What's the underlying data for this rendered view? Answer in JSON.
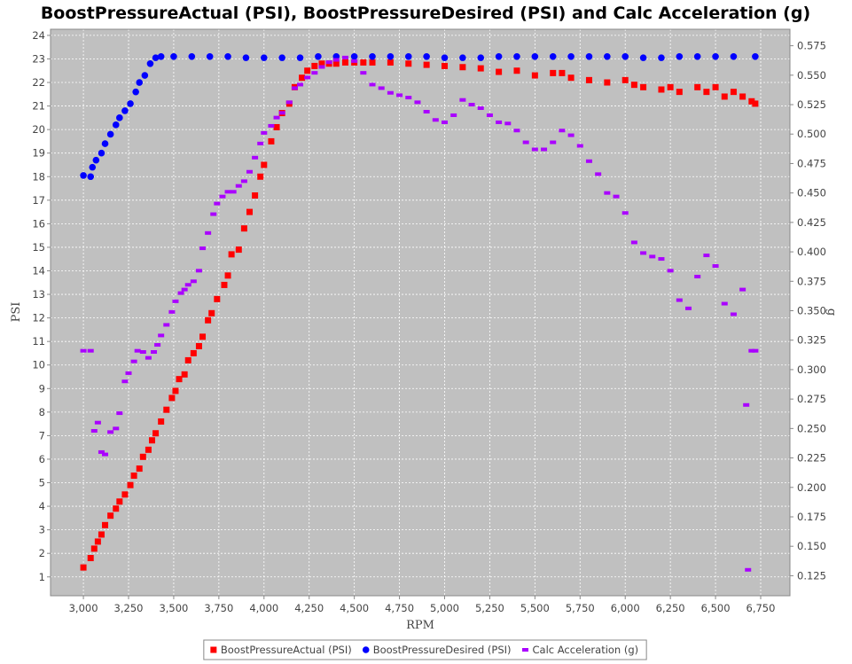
{
  "chart_data": {
    "type": "scatter",
    "title": "BoostPressureActual (PSI), BoostPressureDesired (PSI) and Calc Acceleration (g)",
    "x_label": "RPM",
    "y_label": "PSI",
    "y2_label": "g",
    "xlim": [
      2818,
      6912
    ],
    "ylim": [
      0.2,
      24.26
    ],
    "y2lim": [
      0.108,
      0.589
    ],
    "xticks": [
      {
        "value": 3000,
        "label": "3,000"
      },
      {
        "value": 3250,
        "label": "3,250"
      },
      {
        "value": 3500,
        "label": "3,500"
      },
      {
        "value": 3750,
        "label": "3,750"
      },
      {
        "value": 4000,
        "label": "4,000"
      },
      {
        "value": 4250,
        "label": "4,250"
      },
      {
        "value": 4500,
        "label": "4,500"
      },
      {
        "value": 4750,
        "label": "4,750"
      },
      {
        "value": 5000,
        "label": "5,000"
      },
      {
        "value": 5250,
        "label": "5,250"
      },
      {
        "value": 5500,
        "label": "5,500"
      },
      {
        "value": 5750,
        "label": "5,750"
      },
      {
        "value": 6000,
        "label": "6,000"
      },
      {
        "value": 6250,
        "label": "6,250"
      },
      {
        "value": 6500,
        "label": "6,500"
      },
      {
        "value": 6750,
        "label": "6,750"
      }
    ],
    "yticks": [
      1,
      2,
      3,
      4,
      5,
      6,
      7,
      8,
      9,
      10,
      11,
      12,
      13,
      14,
      15,
      16,
      17,
      18,
      19,
      20,
      21,
      22,
      23,
      24
    ],
    "y2ticks": [
      0.125,
      {
        "value": 0.15,
        "label": "0.150"
      },
      0.175,
      {
        "value": 0.2,
        "label": "0.200"
      },
      0.225,
      {
        "value": 0.25,
        "label": "0.250"
      },
      0.275,
      {
        "value": 0.3,
        "label": "0.300"
      },
      0.325,
      {
        "value": 0.35,
        "label": "0.350"
      },
      0.375,
      {
        "value": 0.4,
        "label": "0.400"
      },
      0.425,
      {
        "value": 0.45,
        "label": "0.450"
      },
      0.475,
      {
        "value": 0.5,
        "label": "0.500"
      },
      0.525,
      {
        "value": 0.55,
        "label": "0.550"
      },
      0.575
    ],
    "grid": true,
    "legend": "bottom",
    "series": [
      {
        "name": "BoostPressureActual (PSI)",
        "color": "#ff0000",
        "marker": "square",
        "x": [
          3000,
          3040,
          3060,
          3080,
          3100,
          3120,
          3150,
          3180,
          3200,
          3230,
          3260,
          3280,
          3310,
          3330,
          3360,
          3380,
          3400,
          3430,
          3460,
          3490,
          3510,
          3530,
          3560,
          3580,
          3610,
          3640,
          3660,
          3690,
          3710,
          3740,
          3780,
          3800,
          3820,
          3860,
          3890,
          3920,
          3950,
          3980,
          4000,
          4040,
          4070,
          4100,
          4140,
          4170,
          4210,
          4240,
          4280,
          4320,
          4360,
          4400,
          4450,
          4500,
          4550,
          4600,
          4700,
          4800,
          4900,
          5000,
          5100,
          5200,
          5300,
          5400,
          5500,
          5600,
          5650,
          5700,
          5800,
          5900,
          6000,
          6050,
          6100,
          6200,
          6250,
          6300,
          6400,
          6450,
          6500,
          6550,
          6600,
          6650,
          6700,
          6720
        ],
        "values": [
          1.4,
          1.8,
          2.2,
          2.5,
          2.8,
          3.2,
          3.6,
          3.9,
          4.2,
          4.5,
          4.9,
          5.3,
          5.6,
          6.1,
          6.4,
          6.8,
          7.1,
          7.6,
          8.1,
          8.6,
          8.9,
          9.4,
          9.6,
          10.2,
          10.5,
          10.8,
          11.2,
          11.9,
          12.2,
          12.8,
          13.4,
          13.8,
          14.7,
          14.9,
          15.8,
          16.5,
          17.2,
          18,
          18.5,
          19.5,
          20.1,
          20.7,
          21.1,
          21.8,
          22.2,
          22.5,
          22.7,
          22.8,
          22.8,
          22.8,
          22.85,
          22.85,
          22.85,
          22.85,
          22.85,
          22.8,
          22.75,
          22.7,
          22.65,
          22.6,
          22.45,
          22.5,
          22.3,
          22.4,
          22.4,
          22.2,
          22.1,
          22.0,
          22.1,
          21.9,
          21.8,
          21.7,
          21.8,
          21.6,
          21.8,
          21.6,
          21.8,
          21.4,
          21.6,
          21.4,
          21.2,
          21.1
        ]
      },
      {
        "name": "BoostPressureDesired (PSI)",
        "color": "#0000ff",
        "marker": "circle",
        "x": [
          3000,
          3040,
          3050,
          3070,
          3100,
          3120,
          3150,
          3180,
          3200,
          3230,
          3260,
          3290,
          3310,
          3340,
          3370,
          3400,
          3430,
          3500,
          3600,
          3700,
          3800,
          3900,
          4000,
          4100,
          4200,
          4300,
          4400,
          4500,
          4600,
          4700,
          4800,
          4900,
          5000,
          5100,
          5200,
          5300,
          5400,
          5500,
          5600,
          5700,
          5800,
          5900,
          6000,
          6100,
          6200,
          6300,
          6400,
          6500,
          6600,
          6720
        ],
        "values": [
          18.05,
          18.0,
          18.4,
          18.7,
          19.0,
          19.4,
          19.8,
          20.2,
          20.5,
          20.8,
          21.1,
          21.6,
          22.0,
          22.3,
          22.8,
          23.05,
          23.1,
          23.1,
          23.1,
          23.1,
          23.1,
          23.05,
          23.05,
          23.05,
          23.05,
          23.1,
          23.1,
          23.1,
          23.1,
          23.1,
          23.1,
          23.1,
          23.05,
          23.05,
          23.05,
          23.1,
          23.1,
          23.1,
          23.1,
          23.1,
          23.1,
          23.1,
          23.1,
          23.05,
          23.05,
          23.1,
          23.1,
          23.1,
          23.1,
          23.1
        ]
      },
      {
        "name": "Calc Acceleration (g)",
        "color": "#aa00ff",
        "marker": "dash",
        "axis": "y2",
        "x": [
          3000,
          3040,
          3060,
          3080,
          3100,
          3120,
          3150,
          3180,
          3200,
          3230,
          3250,
          3280,
          3300,
          3330,
          3360,
          3390,
          3410,
          3430,
          3460,
          3490,
          3510,
          3540,
          3560,
          3580,
          3610,
          3640,
          3660,
          3690,
          3720,
          3740,
          3770,
          3800,
          3830,
          3860,
          3890,
          3920,
          3950,
          3980,
          4000,
          4040,
          4070,
          4100,
          4140,
          4170,
          4200,
          4240,
          4280,
          4320,
          4360,
          4400,
          4450,
          4500,
          4550,
          4600,
          4650,
          4700,
          4750,
          4800,
          4850,
          4900,
          4950,
          5000,
          5050,
          5100,
          5150,
          5200,
          5250,
          5300,
          5350,
          5400,
          5450,
          5500,
          5550,
          5600,
          5650,
          5700,
          5750,
          5800,
          5850,
          5900,
          5950,
          6000,
          6050,
          6100,
          6150,
          6200,
          6250,
          6300,
          6350,
          6400,
          6450,
          6500,
          6550,
          6600,
          6650,
          6670,
          6680,
          6700,
          6720
        ],
        "values": [
          0.316,
          0.316,
          0.248,
          0.255,
          0.23,
          0.228,
          0.247,
          0.25,
          0.263,
          0.29,
          0.297,
          0.307,
          0.316,
          0.315,
          0.31,
          0.315,
          0.321,
          0.329,
          0.338,
          0.349,
          0.358,
          0.365,
          0.368,
          0.372,
          0.375,
          0.384,
          0.403,
          0.416,
          0.432,
          0.441,
          0.447,
          0.451,
          0.451,
          0.456,
          0.46,
          0.468,
          0.48,
          0.492,
          0.501,
          0.507,
          0.514,
          0.518,
          0.527,
          0.539,
          0.542,
          0.548,
          0.552,
          0.557,
          0.561,
          0.563,
          0.565,
          0.562,
          0.552,
          0.542,
          0.539,
          0.535,
          0.533,
          0.531,
          0.527,
          0.519,
          0.512,
          0.51,
          0.516,
          0.529,
          0.525,
          0.522,
          0.516,
          0.51,
          0.509,
          0.503,
          0.493,
          0.487,
          0.487,
          0.493,
          0.503,
          0.499,
          0.49,
          0.477,
          0.466,
          0.45,
          0.447,
          0.433,
          0.408,
          0.399,
          0.396,
          0.394,
          0.384,
          0.359,
          0.352,
          0.379,
          0.397,
          0.388,
          0.356,
          0.347,
          0.368,
          0.27,
          0.13,
          0.316,
          0.316
        ]
      }
    ]
  }
}
